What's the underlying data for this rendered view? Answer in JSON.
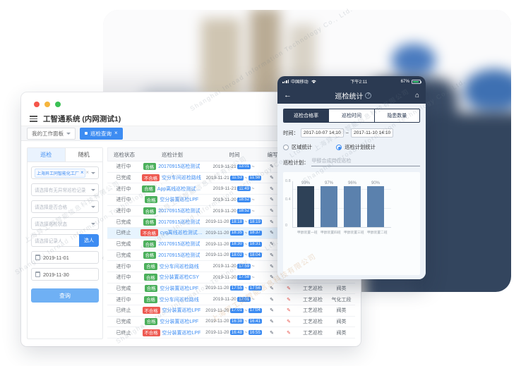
{
  "page": {
    "watermark_cn": "上海异工同智能信息科技有限公司",
    "watermark_en": "Shanghai Inroad Information Technology Co., Ltd."
  },
  "desktop": {
    "title": "工智通系统 (内网测试1)",
    "workspace_tab": "我的工作面板",
    "active_tab": "巡检查询",
    "sidebar": {
      "tab_inspection": "巡检",
      "tab_random": "随机",
      "factory_chip": "上海异工同智能化工厂",
      "select_abnormal": "请选择有无异常巡检记录",
      "select_qualified": "请选择是否合格",
      "select_status": "请选择巡检状态",
      "recorder_placeholder": "请选择记录人",
      "pick_person": "选人",
      "date_start": "2019-11-01",
      "date_end": "2019-11-30",
      "query": "查询"
    },
    "table": {
      "headers": [
        "巡检状态",
        "巡检计划",
        "时间",
        "编写",
        "",
        "",
        ""
      ],
      "time_separator": "~",
      "rows": [
        {
          "status": "进行中",
          "badge": "合格",
          "badge_type": "green",
          "plan": "20170915巡检测试",
          "date": "2019-11-21",
          "start": "13:01",
          "end": "",
          "type": "",
          "category": "",
          "highlight": false
        },
        {
          "status": "已完成",
          "badge": "不合格",
          "badge_type": "red",
          "plan": "空分车间巡检路线",
          "date": "2019-11-21",
          "start": "11:53",
          "end": "11:58",
          "type": "",
          "category": "",
          "highlight": false
        },
        {
          "status": "进行中",
          "badge": "合格",
          "badge_type": "green",
          "plan": "App离线巡检测试计划",
          "date": "2019-11-21",
          "start": "11:49",
          "end": "",
          "type": "",
          "category": "",
          "highlight": false
        },
        {
          "status": "进行中",
          "badge": "合格",
          "badge_type": "green",
          "plan": "空分装置巡检LPF",
          "date": "2019-11-20",
          "start": "18:52",
          "end": "",
          "type": "",
          "category": "",
          "highlight": false
        },
        {
          "status": "进行中",
          "badge": "合格",
          "badge_type": "green",
          "plan": "20170915巡检测试",
          "date": "2019-11-20",
          "start": "18:52",
          "end": "",
          "type": "",
          "category": "",
          "highlight": false
        },
        {
          "status": "已完成",
          "badge": "合格",
          "badge_type": "green",
          "plan": "20170915巡检测试",
          "date": "2019-11-20",
          "start": "18:18",
          "end": "18:19",
          "type": "",
          "category": "",
          "highlight": false
        },
        {
          "status": "已终止",
          "badge": "不合格",
          "badge_type": "red",
          "plan": "cyq离线巡检测试计划",
          "date": "2019-11-20",
          "start": "18:35",
          "end": "18:37",
          "type": "",
          "category": "",
          "highlight": true
        },
        {
          "status": "已完成",
          "badge": "合格",
          "badge_type": "green",
          "plan": "20170915巡检测试",
          "date": "2019-11-20",
          "start": "18:30",
          "end": "18:31",
          "type": "",
          "category": "",
          "highlight": false
        },
        {
          "status": "已完成",
          "badge": "合格",
          "badge_type": "green",
          "plan": "20170915巡检测试",
          "date": "2019-11-20",
          "start": "18:02",
          "end": "18:04",
          "type": "",
          "category": "",
          "highlight": false
        },
        {
          "status": "进行中",
          "badge": "合格",
          "badge_type": "green",
          "plan": "空分车间巡检路线",
          "date": "2019-11-20",
          "start": "17:59",
          "end": "",
          "type": "",
          "category": "",
          "highlight": false
        },
        {
          "status": "进行中",
          "badge": "合格",
          "badge_type": "green",
          "plan": "空分装置巡检CSY",
          "date": "2019-11-20",
          "start": "17:58",
          "end": "",
          "type": "",
          "category": "",
          "highlight": false
        },
        {
          "status": "已完成",
          "badge": "合格",
          "badge_type": "green",
          "plan": "空分装置巡检LPF",
          "date": "2019-11-20",
          "start": "17:55",
          "end": "17:56",
          "type": "工艺巡检",
          "category": "阀类",
          "highlight": false
        },
        {
          "status": "进行中",
          "badge": "合格",
          "badge_type": "green",
          "plan": "空分车间巡检路线",
          "date": "2019-11-20",
          "start": "17:01",
          "end": "",
          "type": "工艺巡检",
          "category": "气化工段",
          "highlight": false
        },
        {
          "status": "已终止",
          "badge": "不合格",
          "badge_type": "red",
          "plan": "空分装置巡检LPF",
          "date": "2019-11-20",
          "start": "17:01",
          "end": "17:04",
          "type": "工艺巡检",
          "category": "阀类",
          "highlight": false
        },
        {
          "status": "已完成",
          "badge": "合格",
          "badge_type": "green",
          "plan": "空分装置巡检LPF",
          "date": "2019-11-20",
          "start": "16:38",
          "end": "16:41",
          "type": "工艺巡检",
          "category": "阀类",
          "highlight": false
        },
        {
          "status": "已终止",
          "badge": "不合格",
          "badge_type": "red",
          "plan": "空分装置巡检LPF",
          "date": "2019-11-20",
          "start": "16:48",
          "end": "16:55",
          "type": "工艺巡检",
          "category": "阀类",
          "highlight": false
        }
      ]
    }
  },
  "phone": {
    "status": {
      "carrier": "中国移动",
      "time": "下午2:11",
      "battery": "67%"
    },
    "nav_title": "巡检统计",
    "tabs": [
      "巡检合格率",
      "巡检时间",
      "隐患数量"
    ],
    "time_label": "时间：",
    "date_from": "2017-10-07 14:10",
    "date_sep": "~",
    "date_to": "2017-11-10 14:10",
    "radio_area": "区域统计",
    "radio_plan": "巡检计划统计",
    "plan_label": "巡检计划：",
    "plan_value": "甲醇合成岗位巡检"
  },
  "chart_data": {
    "type": "bar",
    "categories": [
      "甲醇装置一班",
      "甲醇装置四班",
      "甲醇装置三班",
      "甲醇装置二班"
    ],
    "values": [
      99,
      97,
      96,
      90
    ],
    "labels": [
      "99%",
      "97%",
      "96%",
      "90%"
    ],
    "title": "",
    "xlabel": "",
    "ylabel": "",
    "ylim": [
      0,
      1
    ],
    "yticks": [
      "0.8",
      "0.4",
      "0"
    ],
    "grid": true,
    "legend": "none",
    "bar_colors": [
      "#2e4157",
      "#5b81ad",
      "#5b81ad",
      "#5b81ad"
    ]
  }
}
